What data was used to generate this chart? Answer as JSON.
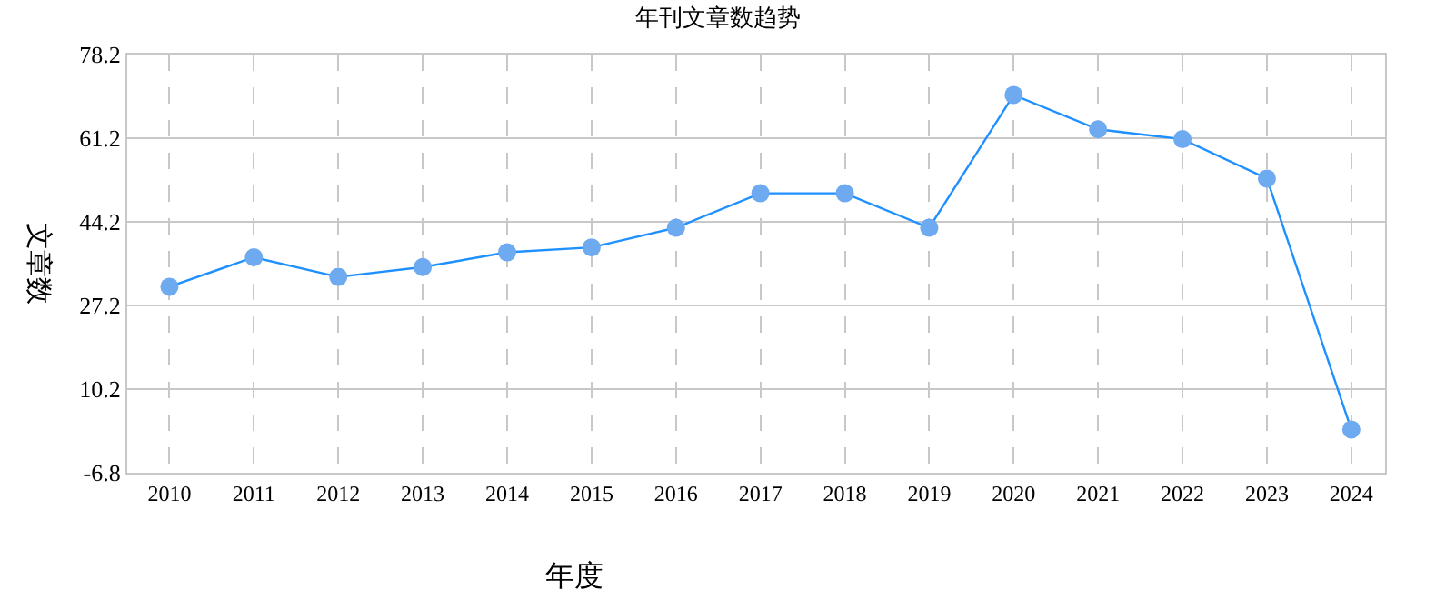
{
  "chart_data": {
    "type": "line",
    "title": "年刊文章数趋势",
    "xlabel": "年度",
    "ylabel": "文章数",
    "categories": [
      "2010",
      "2011",
      "2012",
      "2013",
      "2014",
      "2015",
      "2016",
      "2017",
      "2018",
      "2019",
      "2020",
      "2021",
      "2022",
      "2023",
      "2024"
    ],
    "series": [
      {
        "color": "#1e90ff",
        "values": [
          31,
          37,
          33,
          35,
          38,
          39,
          43,
          50,
          50,
          43,
          70,
          63,
          61,
          53,
          2
        ]
      }
    ],
    "ylim": [
      -6.8,
      78.2
    ],
    "yticks": [
      -6.8,
      10.2,
      27.2,
      44.2,
      61.2,
      78.2
    ],
    "grid": true,
    "marker": "circle",
    "line_style": "solid"
  }
}
